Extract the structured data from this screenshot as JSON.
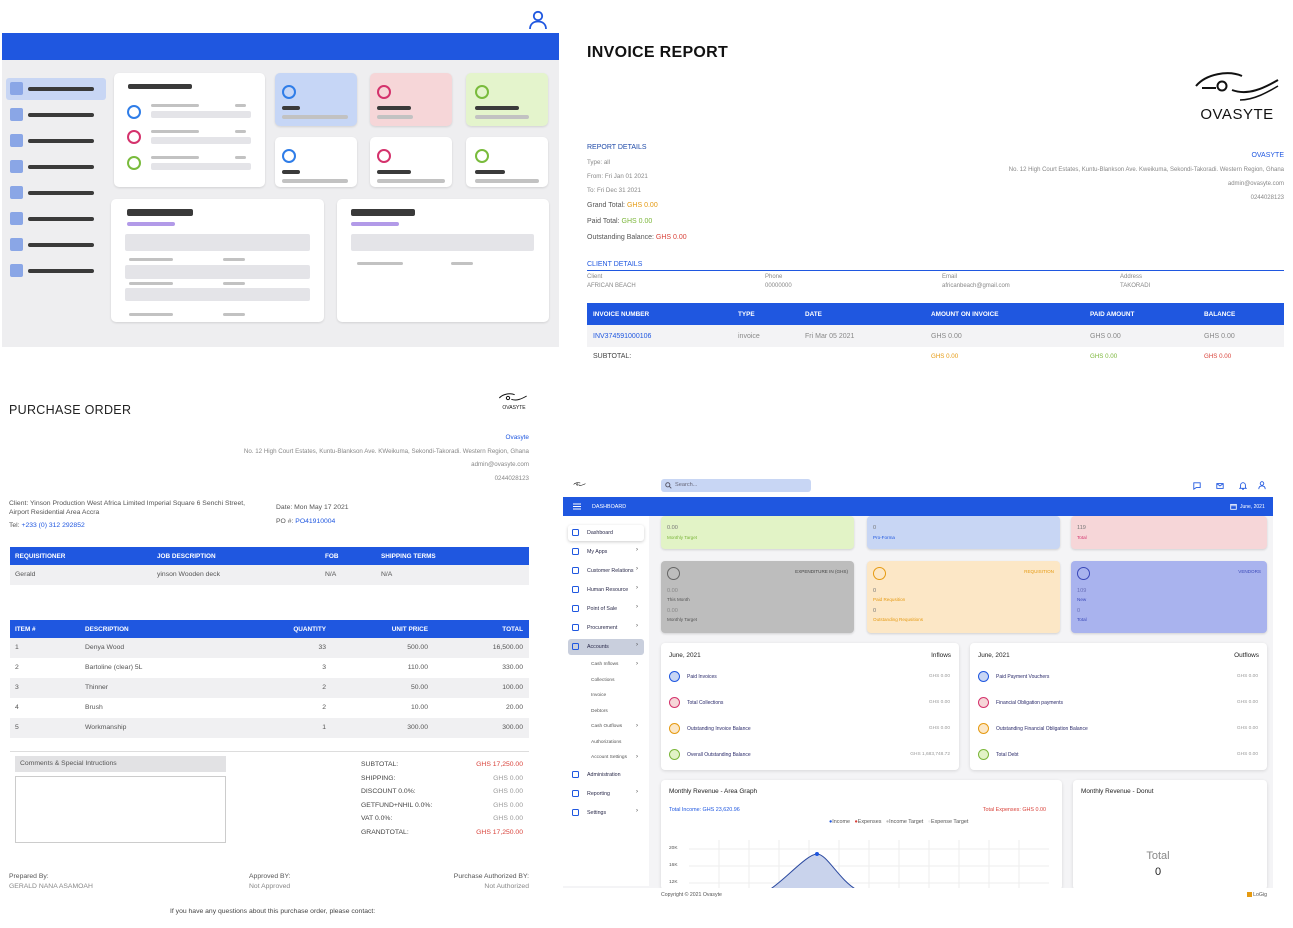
{
  "invoice": {
    "title": "INVOICE REPORT",
    "logo_text": "OVASYTE",
    "report_details_label": "REPORT DETAILS",
    "type": "Type: all",
    "from": "From: Fri Jan 01 2021",
    "to": "To: Fri Dec 31 2021",
    "grand_total_label": "Grand Total:",
    "grand_total": "GHS 0.00",
    "paid_total_label": "Paid Total:",
    "paid_total": "GHS 0.00",
    "outstanding_label": "Outstanding Balance:",
    "outstanding": "GHS 0.00",
    "company": "OVASYTE",
    "address": "No. 12 High Court Estates, Kuntu-Blankson Ave. Kweikuma, Sekondi-Takoradi. Western Region, Ghana",
    "email": "admin@ovasyte.com",
    "phone": "0244028123",
    "client_details_label": "CLIENT DETAILS",
    "client_cols": [
      "Client",
      "Phone",
      "Email",
      "Address"
    ],
    "client_vals": [
      "AFRICAN BEACH",
      "00000000",
      "africanbeach@gmail.com",
      "TAKORADI"
    ],
    "table_headers": [
      "INVOICE NUMBER",
      "TYPE",
      "DATE",
      "AMOUNT ON INVOICE",
      "PAID AMOUNT",
      "BALANCE"
    ],
    "row": [
      "INV374591000106",
      "invoice",
      "Fri Mar 05 2021",
      "GHS 0.00",
      "GHS 0.00",
      "GHS 0.00"
    ],
    "subtotal_label": "SUBTOTAL:",
    "subtotals": [
      "GHS 0.00",
      "GHS 0.00",
      "GHS 0.00"
    ]
  },
  "po": {
    "title": "PURCHASE ORDER",
    "logo_text": "OVASYTE",
    "company": "Ovasyte",
    "address": "No. 12 High Court Estates, Kuntu-Blankson Ave. KWeikuma, Sekondi-Takoradi. Western Region, Ghana",
    "email": "admin@ovasyte.com",
    "phone": "0244028123",
    "client_line1": "Client: Yinson Production West Africa Limited Imperial Square 6 Senchi Street,",
    "client_line2": "Airport Residential Area Accra",
    "tel_label": "Tel:",
    "tel": "+233 (0) 312 292852",
    "date": "Date: Mon May 17 2021",
    "po_label": "PO #:",
    "po_number": "PO41910004",
    "req_headers": [
      "REQUISITIONER",
      "JOB DESCRIPTION",
      "FOB",
      "SHIPPING TERMS"
    ],
    "req_row": [
      "Gerald",
      "yinson Wooden deck",
      "N/A",
      "N/A"
    ],
    "item_headers": [
      "ITEM #",
      "DESCRIPTION",
      "QUANTITY",
      "UNIT PRICE",
      "TOTAL"
    ],
    "items": [
      [
        "1",
        "Denya Wood",
        "33",
        "500.00",
        "16,500.00"
      ],
      [
        "2",
        "Bartoline (clear) 5L",
        "3",
        "110.00",
        "330.00"
      ],
      [
        "3",
        "Thinner",
        "2",
        "50.00",
        "100.00"
      ],
      [
        "4",
        "Brush",
        "2",
        "10.00",
        "20.00"
      ],
      [
        "5",
        "Workmanship",
        "1",
        "300.00",
        "300.00"
      ]
    ],
    "comments_label": "Comments & Special Intructions",
    "totals": [
      [
        "SUBTOTAL:",
        "GHS 17,250.00"
      ],
      [
        "SHIPPING:",
        "GHS 0.00"
      ],
      [
        "DISCOUNT 0.0%:",
        "GHS 0.00"
      ],
      [
        "GETFUND+NHIL 0.0%:",
        "GHS 0.00"
      ],
      [
        "VAT 0.0%:",
        "GHS 0.00"
      ],
      [
        "GRANDTOTAL:",
        "GHS 17,250.00"
      ]
    ],
    "prepared_label": "Prepared By:",
    "prepared": "GERALD NANA ASAMOAH",
    "approved_label": "Approved BY:",
    "approved": "Not Approved",
    "authorized_label": "Purchase Authorized BY:",
    "authorized": "Not Authorized",
    "footer": "If you have any questions about this purchase order, please contact:"
  },
  "dashboard": {
    "search_placeholder": "Search...",
    "nav_title": "DASHBOARD",
    "period": "June, 2021",
    "sidebar": [
      "Dashboard",
      "My Apps",
      "Customer Relations",
      "Human Resource",
      "Point of Sale",
      "Procurement",
      "Accounts",
      "Cash Inflows",
      "Collections",
      "Invoice",
      "Debtors",
      "Cash Outflows",
      "Authorizations",
      "Account Settings",
      "Administration",
      "Reporting",
      "Settings"
    ],
    "top_tiles": [
      {
        "value": "0.00",
        "label": "Monthly Target"
      },
      {
        "value": "0",
        "label": "Pro-Forma"
      },
      {
        "value": "119",
        "label": "Total"
      }
    ],
    "mid_tiles": [
      {
        "title": "EXPENDITURE IN (GHS)",
        "v1": "0.00",
        "l1": "This Month",
        "v2": "0.00",
        "l2": "Monthly Target"
      },
      {
        "title": "REQUISITION",
        "v1": "0",
        "l1": "Paid Requsition",
        "v2": "0",
        "l2": "Outstanding Requsitions"
      },
      {
        "title": "VENDORS",
        "v1": "109",
        "l1": "New",
        "v2": "0",
        "l2": "Total"
      }
    ],
    "inflows": {
      "period": "June, 2021",
      "title": "Inflows",
      "rows": [
        [
          "Paid Invoices",
          "GHS 0.00"
        ],
        [
          "Total Collections",
          "GHS 0.00"
        ],
        [
          "Outstanding Invoice Balance",
          "GHS 0.00"
        ],
        [
          "Overall Outstanding Balance",
          "GHS 1,683,748.72"
        ]
      ]
    },
    "outflows": {
      "period": "June, 2021",
      "title": "Outflows",
      "rows": [
        [
          "Paid Payment Vouchers",
          "GHS 0.00"
        ],
        [
          "Financial Obligation payments",
          "GHS 0.00"
        ],
        [
          "Outstanding Financial Obligation Balance",
          "GHS 0.00"
        ],
        [
          "Total Debt",
          "GHS 0.00"
        ]
      ]
    },
    "area_title": "Monthly Revenue - Area Graph",
    "total_income": "Total Income: GHS 23,620.96",
    "total_expenses": "Total Expenses: GHS 0.00",
    "legend": [
      "Income",
      "Expenses",
      "Income Target",
      "Expense Target"
    ],
    "y_ticks": [
      "20K",
      "16K",
      "12K"
    ],
    "donut_title": "Monthly Revenue - Donut",
    "donut_total_label": "Total",
    "donut_total": "0",
    "copyright": "Copyright © 2021 Ovasyte",
    "brand": "LoGig"
  },
  "colors": {
    "brand_blue": "#1f57e0",
    "orange": "#e59a12",
    "green": "#7bb63a",
    "red": "#d9433b"
  }
}
